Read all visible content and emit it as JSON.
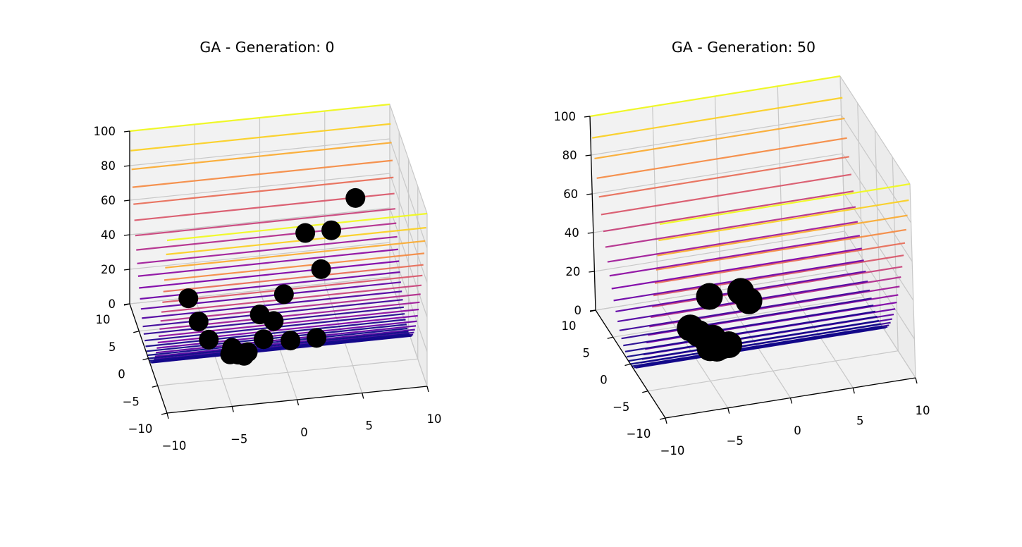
{
  "chart_data": [
    {
      "type": "scatter3d",
      "title": "GA - Generation: 0",
      "surface": "y^2 (ridge surface, colormap plasma)",
      "colormap": "plasma",
      "xlim": [
        -10,
        10
      ],
      "ylim": [
        -10,
        10
      ],
      "zlim": [
        0,
        100
      ],
      "xticks": [
        "−10",
        "−5",
        "0",
        "5",
        "10"
      ],
      "yticks": [
        "−10",
        "−5",
        "0",
        "5",
        "10"
      ],
      "zticks": [
        "0",
        "20",
        "40",
        "60",
        "80",
        "100"
      ],
      "grid": true,
      "points": [
        {
          "x": -8,
          "y": -7.5,
          "z": 57
        },
        {
          "x": -7,
          "y": -6,
          "z": 38
        },
        {
          "x": -6,
          "y": -4.5,
          "z": 22
        },
        {
          "x": -4,
          "y": -3,
          "z": 11
        },
        {
          "x": -3.5,
          "y": -2.8,
          "z": 6
        },
        {
          "x": -3,
          "y": -2.5,
          "z": 4
        },
        {
          "x": -3,
          "y": -1.5,
          "z": 2
        },
        {
          "x": -2.5,
          "y": -1,
          "z": 1
        },
        {
          "x": -4,
          "y": -2,
          "z": 4
        },
        {
          "x": 3,
          "y": 6.5,
          "z": 42
        },
        {
          "x": 1,
          "y": 4,
          "z": 16
        },
        {
          "x": -1,
          "y": 3,
          "z": 9
        },
        {
          "x": 0,
          "y": 2.5,
          "z": 6
        },
        {
          "x": -1,
          "y": 1,
          "z": 1
        },
        {
          "x": 5,
          "y": 6.5,
          "z": 42
        },
        {
          "x": 4,
          "y": 5,
          "z": 25
        },
        {
          "x": 7,
          "y": 7.5,
          "z": 56
        },
        {
          "x": 1,
          "y": 0.5,
          "z": 0.25
        },
        {
          "x": 3,
          "y": 0.5,
          "z": 0.25
        }
      ]
    },
    {
      "type": "scatter3d",
      "title": "GA - Generation: 50",
      "surface": "y^2 (ridge surface, colormap plasma)",
      "colormap": "plasma",
      "xlim": [
        -10,
        10
      ],
      "ylim": [
        -10,
        10
      ],
      "zlim": [
        0,
        100
      ],
      "xticks": [
        "−10",
        "−5",
        "0",
        "5",
        "10"
      ],
      "yticks": [
        "−10",
        "−5",
        "0",
        "5",
        "10"
      ],
      "zticks": [
        "0",
        "20",
        "40",
        "60",
        "80",
        "100"
      ],
      "grid": true,
      "points": [
        {
          "x": -2.5,
          "y": 4,
          "z": 16
        },
        {
          "x": -4.5,
          "y": 2.5,
          "z": 6
        },
        {
          "x": -4,
          "y": 2,
          "z": 4
        },
        {
          "x": -3.5,
          "y": 1.5,
          "z": 2
        },
        {
          "x": -3,
          "y": 1.5,
          "z": 2
        },
        {
          "x": -3.5,
          "y": 0.5,
          "z": 0.3
        },
        {
          "x": -3,
          "y": 0.3,
          "z": 0.1
        },
        {
          "x": -2.5,
          "y": 0.5,
          "z": 0.3
        },
        {
          "x": -2,
          "y": 0.5,
          "z": 0.3
        },
        {
          "x": 0,
          "y": 4,
          "z": 16
        },
        {
          "x": 0.5,
          "y": 3.5,
          "z": 12
        }
      ]
    }
  ]
}
